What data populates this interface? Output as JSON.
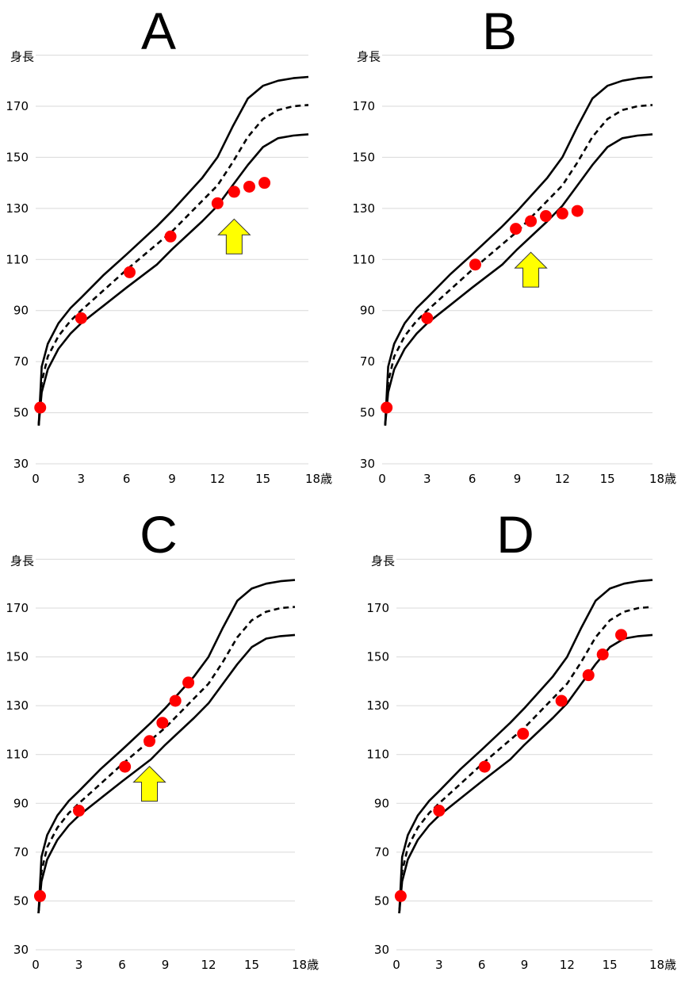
{
  "chart_data": [
    {
      "type": "scatter",
      "title": "A",
      "ylabel": "身長",
      "xlabel": "歳",
      "x_ticks": [
        "0",
        "3",
        "6",
        "9",
        "12",
        "15",
        "18歳"
      ],
      "y_ticks": [
        "30",
        "50",
        "70",
        "90",
        "110",
        "130",
        "150",
        "170"
      ],
      "xlim": [
        0,
        18
      ],
      "ylim": [
        30,
        190
      ],
      "grid": true,
      "series": [
        {
          "points": [
            [
              0.3,
              52
            ],
            [
              3.0,
              87
            ],
            [
              6.2,
              105
            ],
            [
              8.9,
              119
            ],
            [
              12.0,
              132
            ],
            [
              13.1,
              136.5
            ],
            [
              14.1,
              138.5
            ],
            [
              15.1,
              140
            ]
          ]
        }
      ],
      "annotations": [
        {
          "type": "up-arrow",
          "color": "#ffff00",
          "at": [
            13.1,
            119
          ]
        }
      ]
    },
    {
      "type": "scatter",
      "title": "B",
      "ylabel": "身長",
      "xlabel": "歳",
      "x_ticks": [
        "0",
        "3",
        "6",
        "9",
        "12",
        "15",
        "18歳"
      ],
      "y_ticks": [
        "30",
        "50",
        "70",
        "90",
        "110",
        "130",
        "150",
        "170"
      ],
      "xlim": [
        0,
        18
      ],
      "ylim": [
        30,
        190
      ],
      "grid": true,
      "series": [
        {
          "points": [
            [
              0.3,
              52
            ],
            [
              3.0,
              87
            ],
            [
              6.2,
              108
            ],
            [
              8.9,
              122
            ],
            [
              9.9,
              125
            ],
            [
              10.9,
              127
            ],
            [
              12.0,
              128
            ],
            [
              13.0,
              129
            ]
          ]
        }
      ],
      "annotations": [
        {
          "type": "up-arrow",
          "color": "#ffff00",
          "at": [
            9.9,
            106
          ]
        }
      ]
    },
    {
      "type": "scatter",
      "title": "C",
      "ylabel": "身長",
      "xlabel": "歳",
      "x_ticks": [
        "0",
        "3",
        "6",
        "9",
        "12",
        "15",
        "18歳"
      ],
      "y_ticks": [
        "30",
        "50",
        "70",
        "90",
        "110",
        "130",
        "150",
        "170"
      ],
      "xlim": [
        0,
        18
      ],
      "ylim": [
        30,
        190
      ],
      "grid": true,
      "series": [
        {
          "points": [
            [
              0.3,
              52
            ],
            [
              3.0,
              87
            ],
            [
              6.2,
              105
            ],
            [
              7.9,
              115.5
            ],
            [
              8.8,
              123
            ],
            [
              9.7,
              132
            ],
            [
              10.6,
              139.5
            ]
          ]
        }
      ],
      "annotations": [
        {
          "type": "up-arrow",
          "color": "#ffff00",
          "at": [
            7.9,
            98
          ]
        }
      ]
    },
    {
      "type": "scatter",
      "title": "D",
      "ylabel": "身長",
      "xlabel": "歳",
      "x_ticks": [
        "0",
        "3",
        "6",
        "9",
        "12",
        "15",
        "18歳"
      ],
      "y_ticks": [
        "30",
        "50",
        "70",
        "90",
        "110",
        "130",
        "150",
        "170"
      ],
      "xlim": [
        0,
        18
      ],
      "ylim": [
        30,
        190
      ],
      "grid": true,
      "series": [
        {
          "points": [
            [
              0.3,
              52
            ],
            [
              3.0,
              87
            ],
            [
              6.2,
              105
            ],
            [
              8.9,
              118.5
            ],
            [
              11.6,
              132
            ],
            [
              13.5,
              142.5
            ],
            [
              14.5,
              151
            ],
            [
              15.8,
              159
            ]
          ]
        }
      ],
      "annotations": []
    }
  ],
  "reference_curves": [
    {
      "style": "solid",
      "points": [
        [
          0.2,
          45
        ],
        [
          0.4,
          58
        ],
        [
          0.8,
          67
        ],
        [
          1.5,
          75
        ],
        [
          2.3,
          81
        ],
        [
          3,
          85
        ],
        [
          4.5,
          92
        ],
        [
          6,
          99
        ],
        [
          8,
          108
        ],
        [
          9,
          114
        ],
        [
          11,
          125
        ],
        [
          12,
          131
        ],
        [
          13,
          139
        ],
        [
          14,
          147
        ],
        [
          15,
          154
        ],
        [
          16,
          157.5
        ],
        [
          17,
          158.5
        ],
        [
          18,
          159
        ]
      ]
    },
    {
      "style": "dashed",
      "points": [
        [
          0.2,
          45
        ],
        [
          0.4,
          62
        ],
        [
          0.8,
          72
        ],
        [
          1.5,
          80
        ],
        [
          2.3,
          86
        ],
        [
          3,
          90
        ],
        [
          4.5,
          98
        ],
        [
          6,
          106
        ],
        [
          8,
          116
        ],
        [
          9,
          121
        ],
        [
          11,
          133
        ],
        [
          12,
          139
        ],
        [
          13,
          148
        ],
        [
          14,
          158
        ],
        [
          15,
          165
        ],
        [
          16,
          168.5
        ],
        [
          17,
          170
        ],
        [
          18,
          170.5
        ]
      ]
    },
    {
      "style": "solid",
      "points": [
        [
          0.2,
          45
        ],
        [
          0.4,
          68
        ],
        [
          0.8,
          77
        ],
        [
          1.5,
          85
        ],
        [
          2.3,
          91
        ],
        [
          3,
          95
        ],
        [
          4.5,
          104
        ],
        [
          6,
          112
        ],
        [
          8,
          123
        ],
        [
          9,
          129
        ],
        [
          11,
          142
        ],
        [
          12,
          150
        ],
        [
          13,
          162
        ],
        [
          14,
          173
        ],
        [
          15,
          178
        ],
        [
          16,
          180
        ],
        [
          17,
          181
        ],
        [
          18,
          181.5
        ]
      ]
    }
  ],
  "colors": {
    "point": "#ff0000",
    "arrow_fill": "#ffff00",
    "curve": "#000000",
    "grid": "#d9d9d9"
  }
}
